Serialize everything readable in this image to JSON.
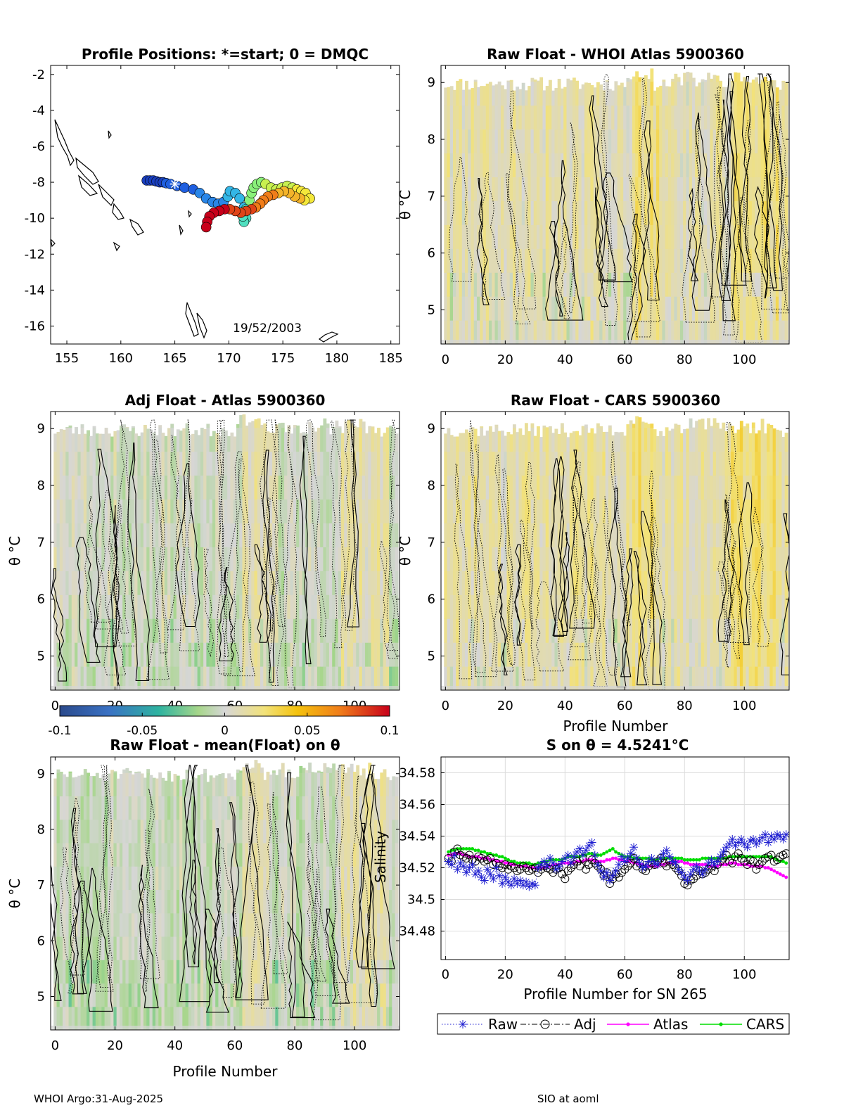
{
  "footer": {
    "left": "WHOI Argo:31-Aug-2025",
    "right": "SIO at aoml"
  },
  "chart_data": [
    {
      "id": "map",
      "type": "scatter",
      "title": "Profile Positions: *=start; 0 = DMQC",
      "xlabel": "",
      "ylabel": "",
      "xlim": [
        153.5,
        185.8
      ],
      "ylim": [
        -17,
        -1.5
      ],
      "xticks": [
        155,
        160,
        165,
        170,
        175,
        180,
        185
      ],
      "yticks": [
        -2,
        -4,
        -6,
        -8,
        -10,
        -12,
        -14,
        -16
      ],
      "annotation": "19/52/2003",
      "start": {
        "lon": 165,
        "lat": -8.1
      },
      "track": [
        [
          162.4,
          -7.9
        ],
        [
          162.7,
          -7.9
        ],
        [
          163.0,
          -7.9
        ],
        [
          163.3,
          -7.95
        ],
        [
          163.6,
          -8.0
        ],
        [
          163.9,
          -8.0
        ],
        [
          164.2,
          -8.05
        ],
        [
          164.6,
          -8.1
        ],
        [
          165.2,
          -8.2
        ],
        [
          165.9,
          -8.3
        ],
        [
          166.7,
          -8.4
        ],
        [
          167.3,
          -8.6
        ],
        [
          167.9,
          -8.9
        ],
        [
          168.5,
          -9.1
        ],
        [
          169.0,
          -9.2
        ],
        [
          169.5,
          -9.1
        ],
        [
          169.9,
          -8.8
        ],
        [
          170.1,
          -8.5
        ],
        [
          170.6,
          -8.6
        ],
        [
          171.0,
          -8.9
        ],
        [
          171.4,
          -9.4
        ],
        [
          171.5,
          -9.7
        ],
        [
          171.6,
          -10.0
        ],
        [
          171.4,
          -10.2
        ],
        [
          171.3,
          -9.9
        ],
        [
          171.6,
          -9.5
        ],
        [
          171.9,
          -9.0
        ],
        [
          172.1,
          -8.6
        ],
        [
          172.3,
          -8.3
        ],
        [
          172.6,
          -8.1
        ],
        [
          173.0,
          -8.0
        ],
        [
          173.4,
          -8.1
        ],
        [
          173.9,
          -8.3
        ],
        [
          174.4,
          -8.4
        ],
        [
          174.9,
          -8.3
        ],
        [
          175.4,
          -8.2
        ],
        [
          175.9,
          -8.3
        ],
        [
          176.3,
          -8.4
        ],
        [
          176.7,
          -8.5
        ],
        [
          177.1,
          -8.6
        ],
        [
          177.5,
          -8.9
        ],
        [
          177.0,
          -9.0
        ],
        [
          176.6,
          -8.9
        ],
        [
          176.1,
          -8.8
        ],
        [
          175.6,
          -8.6
        ],
        [
          175.1,
          -8.5
        ],
        [
          174.6,
          -8.6
        ],
        [
          174.1,
          -8.7
        ],
        [
          173.6,
          -8.8
        ],
        [
          173.2,
          -9.0
        ],
        [
          172.9,
          -9.2
        ],
        [
          172.5,
          -9.4
        ],
        [
          172.1,
          -9.5
        ],
        [
          171.6,
          -9.6
        ],
        [
          171.1,
          -9.7
        ],
        [
          170.6,
          -9.6
        ],
        [
          170.1,
          -9.5
        ],
        [
          169.6,
          -9.5
        ],
        [
          169.1,
          -9.6
        ],
        [
          168.6,
          -9.7
        ],
        [
          168.2,
          -9.9
        ],
        [
          168.0,
          -10.2
        ],
        [
          167.9,
          -10.5
        ]
      ]
    },
    {
      "id": "p_rawwhoi",
      "type": "heatmap",
      "title": "Raw Float - WHOI Atlas  5900360",
      "xlabel": "",
      "ylabel": "θ °C",
      "xlim": [
        -1.5,
        115
      ],
      "ylim": [
        4.4,
        9.3
      ],
      "xticks": [
        0,
        20,
        40,
        60,
        80,
        100
      ],
      "yticks": [
        5,
        6,
        7,
        8,
        9
      ],
      "seed": 11,
      "bias": 0.01
    },
    {
      "id": "p_adjatlas",
      "type": "heatmap",
      "title": "Adj Float - Atlas  5900360",
      "xlabel": "",
      "ylabel": "θ °C",
      "xlim": [
        -1.5,
        115
      ],
      "ylim": [
        4.4,
        9.3
      ],
      "xticks": [
        0,
        20,
        40,
        60,
        80,
        100
      ],
      "yticks": [
        5,
        6,
        7,
        8,
        9
      ],
      "seed": 23,
      "bias": 0.0
    },
    {
      "id": "p_rawcars",
      "type": "heatmap",
      "title": "Raw Float - CARS  5900360",
      "xlabel": "Profile Number",
      "ylabel": "θ °C",
      "xlim": [
        -1.5,
        115
      ],
      "ylim": [
        4.4,
        9.3
      ],
      "xticks": [
        0,
        20,
        40,
        60,
        80,
        100
      ],
      "yticks": [
        5,
        6,
        7,
        8,
        9
      ],
      "seed": 37,
      "bias": 0.012
    },
    {
      "id": "p_rawmean",
      "type": "heatmap",
      "title": "Raw Float - mean(Float) on θ",
      "xlabel": "Profile Number",
      "ylabel": "θ °C",
      "xlim": [
        -1.5,
        115
      ],
      "ylim": [
        4.4,
        9.3
      ],
      "xticks": [
        0,
        20,
        40,
        60,
        80,
        100
      ],
      "yticks": [
        5,
        6,
        7,
        8,
        9
      ],
      "seed": 51,
      "bias": -0.004
    },
    {
      "id": "colorbar",
      "type": "colorbar",
      "range": [
        -0.1,
        0.1
      ],
      "ticks": [
        "-0.1",
        "-0.05",
        "0",
        "0.05",
        "0.1"
      ]
    },
    {
      "id": "salinity",
      "type": "line",
      "title": "S on θ = 4.5241°C",
      "xlabel": "Profile Number for SN 265",
      "ylabel": "Salinity",
      "xlim": [
        -1.5,
        115
      ],
      "ylim": [
        34.462,
        34.59
      ],
      "xticks": [
        0,
        20,
        40,
        60,
        80,
        100
      ],
      "yticks": [
        34.48,
        34.5,
        34.52,
        34.54,
        34.56,
        34.58
      ],
      "ytick_labels": [
        "34.48",
        "34.5",
        "34.52",
        "34.54",
        "34.56",
        "34.58"
      ],
      "x": [
        1,
        2,
        3,
        4,
        5,
        6,
        7,
        8,
        9,
        10,
        11,
        12,
        13,
        14,
        15,
        16,
        17,
        18,
        19,
        20,
        21,
        22,
        23,
        24,
        25,
        26,
        27,
        28,
        29,
        30,
        31,
        32,
        33,
        34,
        35,
        36,
        37,
        38,
        39,
        40,
        41,
        42,
        43,
        44,
        45,
        46,
        47,
        48,
        49,
        50,
        51,
        52,
        53,
        54,
        55,
        56,
        57,
        58,
        59,
        60,
        61,
        62,
        63,
        64,
        65,
        66,
        67,
        68,
        69,
        70,
        71,
        72,
        73,
        74,
        75,
        76,
        77,
        78,
        79,
        80,
        81,
        82,
        83,
        84,
        85,
        86,
        87,
        88,
        89,
        90,
        91,
        92,
        93,
        94,
        95,
        96,
        97,
        98,
        99,
        100,
        101,
        102,
        103,
        104,
        105,
        106,
        107,
        108,
        109,
        110,
        111,
        112,
        113,
        114
      ],
      "series": [
        {
          "name": "Raw",
          "color": "#1f1fd0",
          "style": "dotted",
          "marker": "star",
          "values": [
            34.524,
            34.522,
            34.528,
            34.519,
            34.523,
            34.521,
            34.517,
            34.52,
            34.522,
            34.516,
            34.518,
            34.514,
            34.512,
            34.519,
            34.516,
            34.513,
            34.52,
            34.515,
            34.51,
            34.514,
            34.511,
            34.509,
            34.513,
            34.51,
            34.512,
            34.509,
            34.511,
            34.508,
            34.51,
            34.509,
            34.52,
            34.522,
            34.524,
            34.521,
            34.526,
            34.523,
            34.519,
            34.521,
            34.524,
            34.526,
            34.528,
            34.523,
            34.527,
            34.53,
            34.532,
            34.528,
            34.531,
            34.534,
            34.536,
            34.528,
            34.522,
            34.518,
            34.514,
            34.517,
            34.512,
            34.515,
            34.518,
            34.522,
            34.527,
            34.524,
            34.526,
            34.529,
            34.533,
            34.526,
            34.523,
            34.52,
            34.521,
            34.524,
            34.526,
            34.523,
            34.522,
            34.526,
            34.529,
            34.531,
            34.527,
            34.524,
            34.523,
            34.519,
            34.517,
            34.514,
            34.512,
            34.516,
            34.519,
            34.521,
            34.518,
            34.516,
            34.519,
            34.523,
            34.525,
            34.522,
            34.524,
            34.527,
            34.53,
            34.533,
            34.535,
            34.538,
            34.534,
            34.536,
            34.538,
            34.535,
            34.533,
            34.537,
            34.538,
            34.535,
            34.537,
            34.539,
            34.541,
            34.536,
            34.54,
            34.538,
            34.541,
            34.54,
            34.538,
            34.541
          ]
        },
        {
          "name": "Adj",
          "color": "#000000",
          "style": "dashdot",
          "marker": "circle",
          "values": [
            34.526,
            34.524,
            34.53,
            34.532,
            34.528,
            34.527,
            34.526,
            34.528,
            34.525,
            34.524,
            34.527,
            34.526,
            34.524,
            34.525,
            34.526,
            34.522,
            34.523,
            34.521,
            34.52,
            34.522,
            34.519,
            34.521,
            34.52,
            34.518,
            34.519,
            34.521,
            34.52,
            34.518,
            34.519,
            34.52,
            34.517,
            34.519,
            34.521,
            34.52,
            34.519,
            34.517,
            34.519,
            34.52,
            34.516,
            34.513,
            34.518,
            34.52,
            34.522,
            34.524,
            34.521,
            34.526,
            34.519,
            34.522,
            34.525,
            34.523,
            34.521,
            34.519,
            34.515,
            34.517,
            34.51,
            34.513,
            34.516,
            34.514,
            34.517,
            34.519,
            34.521,
            34.523,
            34.526,
            34.521,
            34.523,
            34.519,
            34.518,
            34.521,
            34.523,
            34.522,
            34.524,
            34.526,
            34.523,
            34.521,
            34.524,
            34.522,
            34.52,
            34.518,
            34.515,
            34.51,
            34.509,
            34.512,
            34.513,
            34.515,
            34.518,
            34.516,
            34.517,
            34.519,
            34.521,
            34.518,
            34.522,
            34.524,
            34.526,
            34.528,
            34.524,
            34.523,
            34.527,
            34.529,
            34.526,
            34.524,
            34.522,
            34.525,
            34.524,
            34.519,
            34.522,
            34.524,
            34.526,
            34.527,
            34.528,
            34.524,
            34.525,
            34.527,
            34.528,
            34.529
          ]
        },
        {
          "name": "Atlas",
          "color": "#ff00ff",
          "style": "solid",
          "marker": "dot",
          "values": [
            34.528,
            34.528,
            34.529,
            34.529,
            34.529,
            34.528,
            34.528,
            34.527,
            34.527,
            34.527,
            34.527,
            34.526,
            34.526,
            34.526,
            34.525,
            34.525,
            34.524,
            34.524,
            34.524,
            34.523,
            34.523,
            34.522,
            34.522,
            34.522,
            34.521,
            34.521,
            34.521,
            34.52,
            34.52,
            34.52,
            34.52,
            34.52,
            34.52,
            34.521,
            34.521,
            34.522,
            34.522,
            34.522,
            34.523,
            34.523,
            34.523,
            34.523,
            34.523,
            34.524,
            34.524,
            34.524,
            34.525,
            34.525,
            34.525,
            34.524,
            34.524,
            34.524,
            34.524,
            34.525,
            34.525,
            34.526,
            34.526,
            34.525,
            34.525,
            34.524,
            34.524,
            34.524,
            34.523,
            34.523,
            34.522,
            34.522,
            34.521,
            34.521,
            34.521,
            34.521,
            34.521,
            34.522,
            34.522,
            34.523,
            34.523,
            34.523,
            34.524,
            34.524,
            34.524,
            34.523,
            34.523,
            34.522,
            34.522,
            34.522,
            34.522,
            34.522,
            34.522,
            34.521,
            34.521,
            34.521,
            34.521,
            34.522,
            34.522,
            34.522,
            34.523,
            34.523,
            34.523,
            34.522,
            34.522,
            34.522,
            34.522,
            34.521,
            34.521,
            34.521,
            34.521,
            34.521,
            34.52,
            34.52,
            34.519,
            34.518,
            34.517,
            34.516,
            34.515,
            34.514
          ]
        },
        {
          "name": "CARS",
          "color": "#00dd00",
          "style": "solid",
          "marker": "dot",
          "values": [
            34.53,
            34.531,
            34.531,
            34.532,
            34.532,
            34.532,
            34.532,
            34.532,
            34.532,
            34.531,
            34.531,
            34.53,
            34.53,
            34.529,
            34.529,
            34.528,
            34.528,
            34.527,
            34.527,
            34.526,
            34.525,
            34.524,
            34.524,
            34.523,
            34.523,
            34.523,
            34.523,
            34.523,
            34.522,
            34.522,
            34.523,
            34.523,
            34.524,
            34.524,
            34.525,
            34.525,
            34.525,
            34.525,
            34.525,
            34.526,
            34.527,
            34.527,
            34.527,
            34.527,
            34.527,
            34.528,
            34.528,
            34.529,
            34.529,
            34.528,
            34.528,
            34.528,
            34.529,
            34.53,
            34.531,
            34.532,
            34.53,
            34.529,
            34.528,
            34.527,
            34.527,
            34.527,
            34.526,
            34.526,
            34.526,
            34.526,
            34.526,
            34.526,
            34.525,
            34.525,
            34.525,
            34.526,
            34.526,
            34.526,
            34.526,
            34.526,
            34.526,
            34.526,
            34.526,
            34.525,
            34.525,
            34.525,
            34.525,
            34.525,
            34.525,
            34.526,
            34.526,
            34.526,
            34.526,
            34.526,
            34.526,
            34.526,
            34.526,
            34.526,
            34.527,
            34.527,
            34.527,
            34.527,
            34.527,
            34.527,
            34.527,
            34.527,
            34.527,
            34.527,
            34.527,
            34.527,
            34.527,
            34.527,
            34.527,
            34.526,
            34.525,
            34.524,
            34.524,
            34.523
          ]
        }
      ]
    }
  ]
}
